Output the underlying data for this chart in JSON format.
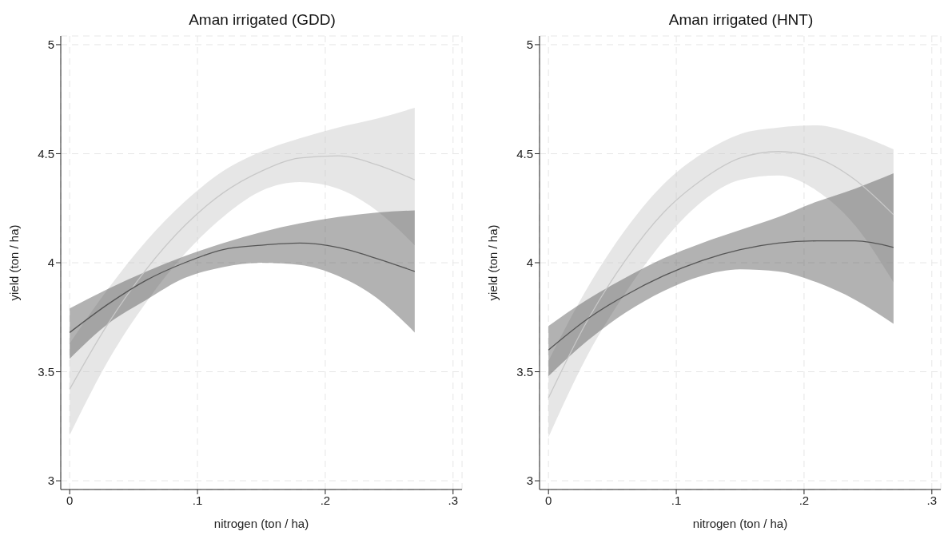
{
  "chart_data": [
    {
      "type": "line",
      "title": "Aman irrigated (GDD)",
      "xlabel": "nitrogen (ton / ha)",
      "ylabel": "yield (ton / ha)",
      "x": [
        0,
        0.03,
        0.06,
        0.09,
        0.12,
        0.15,
        0.18,
        0.21,
        0.24,
        0.27
      ],
      "xlim": [
        -0.007,
        0.307
      ],
      "ylim": [
        2.96,
        5.04
      ],
      "xticks": [
        0,
        {
          "value": 0.1,
          "label": ".1"
        },
        {
          "value": 0.2,
          "label": ".2"
        },
        {
          "value": 0.3,
          "label": ".3"
        }
      ],
      "yticks": [
        3,
        3.5,
        4,
        4.5,
        5
      ],
      "grid": true,
      "legend": false,
      "marker": "none",
      "line_style": "solid",
      "series": [
        {
          "color": "#c8c8c8",
          "values": [
            3.42,
            3.72,
            3.97,
            4.17,
            4.32,
            4.42,
            4.48,
            4.49,
            4.45,
            4.38
          ],
          "lower": [
            3.21,
            3.55,
            3.82,
            4.04,
            4.21,
            4.33,
            4.37,
            4.34,
            4.24,
            4.08
          ],
          "upper": [
            3.63,
            3.88,
            4.1,
            4.28,
            4.42,
            4.51,
            4.57,
            4.62,
            4.66,
            4.71
          ]
        },
        {
          "color": "#555555",
          "values": [
            3.68,
            3.81,
            3.92,
            4.0,
            4.06,
            4.08,
            4.09,
            4.07,
            4.02,
            3.96
          ],
          "lower": [
            3.56,
            3.72,
            3.83,
            3.93,
            3.98,
            4.0,
            3.99,
            3.94,
            3.84,
            3.68
          ],
          "upper": [
            3.79,
            3.88,
            3.96,
            4.03,
            4.09,
            4.14,
            4.18,
            4.21,
            4.23,
            4.24
          ]
        }
      ]
    },
    {
      "type": "line",
      "title": "Aman irrigated (HNT)",
      "xlabel": "nitrogen (ton / ha)",
      "ylabel": "yield (ton / ha)",
      "x": [
        0,
        0.03,
        0.06,
        0.09,
        0.12,
        0.15,
        0.18,
        0.21,
        0.24,
        0.27
      ],
      "xlim": [
        -0.007,
        0.307
      ],
      "ylim": [
        2.96,
        5.04
      ],
      "xticks": [
        0,
        {
          "value": 0.1,
          "label": ".1"
        },
        {
          "value": 0.2,
          "label": ".2"
        },
        {
          "value": 0.3,
          "label": ".3"
        }
      ],
      "yticks": [
        3,
        3.5,
        4,
        4.5,
        5
      ],
      "grid": true,
      "legend": false,
      "marker": "none",
      "line_style": "solid",
      "series": [
        {
          "color": "#c8c8c8",
          "values": [
            3.38,
            3.73,
            4.01,
            4.23,
            4.38,
            4.48,
            4.51,
            4.48,
            4.38,
            4.22
          ],
          "lower": [
            3.2,
            3.57,
            3.86,
            4.1,
            4.28,
            4.38,
            4.4,
            4.33,
            4.17,
            3.91
          ],
          "upper": [
            3.55,
            3.88,
            4.15,
            4.36,
            4.5,
            4.59,
            4.62,
            4.63,
            4.59,
            4.52
          ]
        },
        {
          "color": "#555555",
          "values": [
            3.6,
            3.74,
            3.85,
            3.94,
            4.01,
            4.06,
            4.09,
            4.1,
            4.1,
            4.07
          ],
          "lower": [
            3.48,
            3.64,
            3.77,
            3.87,
            3.94,
            3.97,
            3.96,
            3.91,
            3.83,
            3.72
          ],
          "upper": [
            3.71,
            3.83,
            3.93,
            4.02,
            4.09,
            4.15,
            4.21,
            4.28,
            4.34,
            4.41
          ]
        }
      ]
    }
  ]
}
